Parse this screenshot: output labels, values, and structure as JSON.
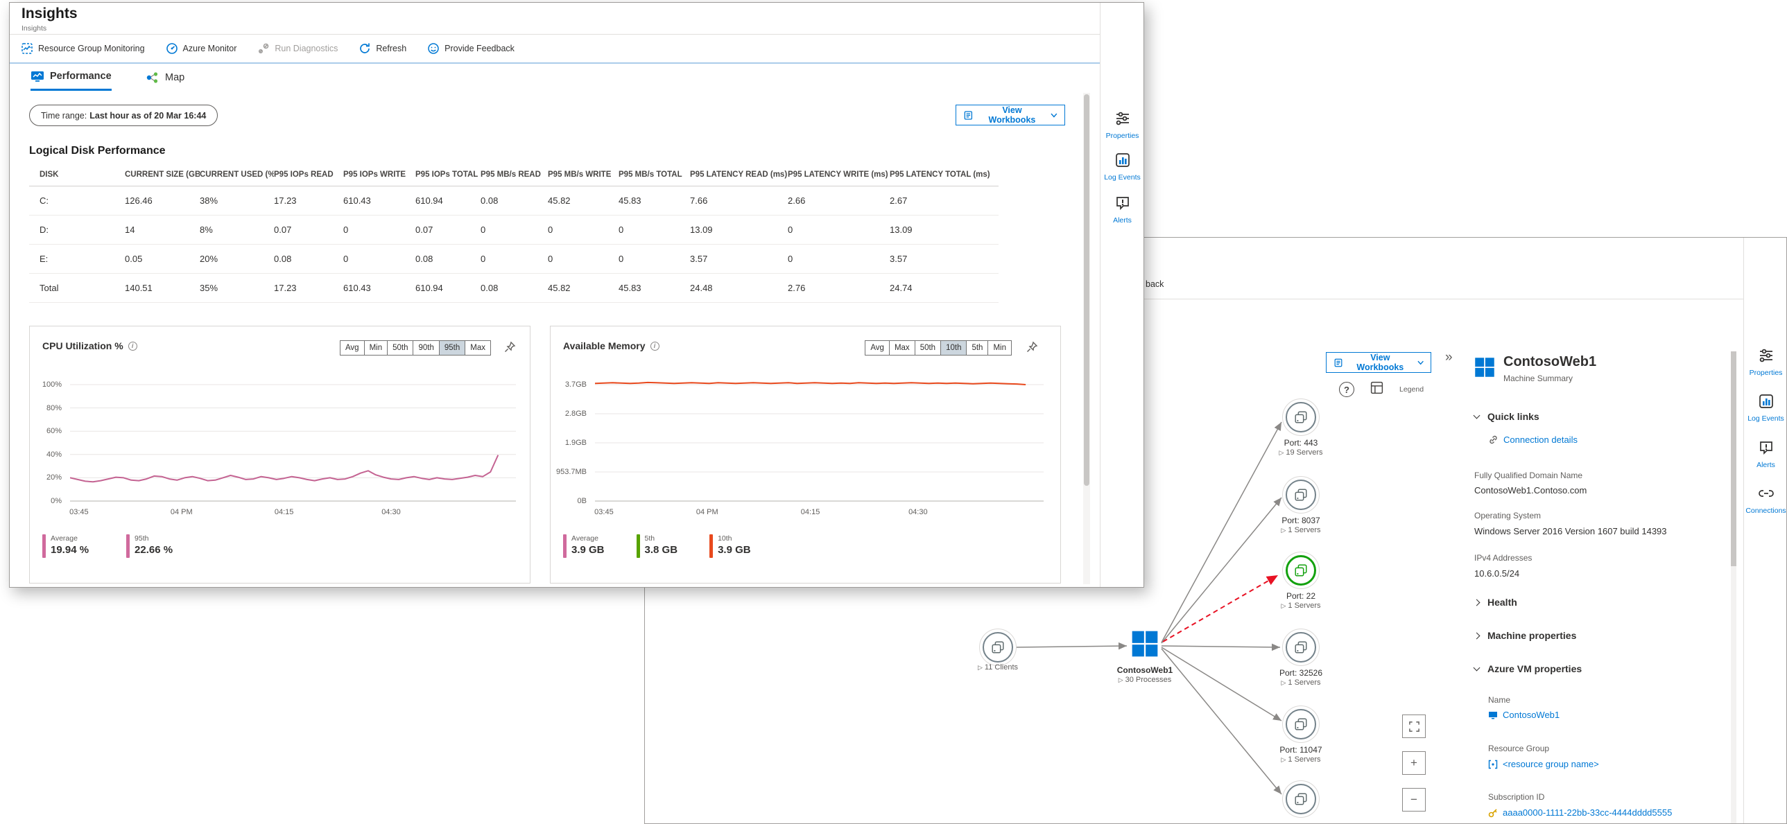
{
  "insights": {
    "title": "Insights",
    "subtitle": "Insights",
    "toolbar": [
      {
        "label": "Resource Group Monitoring"
      },
      {
        "label": "Azure Monitor"
      },
      {
        "label": "Run Diagnostics"
      },
      {
        "label": "Refresh"
      },
      {
        "label": "Provide Feedback"
      }
    ],
    "tabs": {
      "performance": "Performance",
      "map": "Map"
    },
    "time_range": {
      "label": "Time range:",
      "value": "Last hour as of 20 Mar 16:44"
    },
    "view_workbooks": "View Workbooks",
    "disk_table": {
      "title": "Logical Disk Performance",
      "columns": [
        "DISK",
        "CURRENT SIZE (GB)",
        "CURRENT USED (%)",
        "P95 IOPs READ",
        "P95 IOPs WRITE",
        "P95 IOPs TOTAL",
        "P95 MB/s READ",
        "P95 MB/s WRITE",
        "P95 MB/s TOTAL",
        "P95 LATENCY READ (ms)",
        "P95 LATENCY WRITE (ms)",
        "P95 LATENCY TOTAL (ms)"
      ],
      "rows": [
        [
          "C:",
          "126.46",
          "38%",
          "17.23",
          "610.43",
          "610.94",
          "0.08",
          "45.82",
          "45.83",
          "7.66",
          "2.66",
          "2.67"
        ],
        [
          "D:",
          "14",
          "8%",
          "0.07",
          "0",
          "0.07",
          "0",
          "0",
          "0",
          "13.09",
          "0",
          "13.09"
        ],
        [
          "E:",
          "0.05",
          "20%",
          "0.08",
          "0",
          "0.08",
          "0",
          "0",
          "0",
          "3.57",
          "0",
          "3.57"
        ],
        [
          "Total",
          "140.51",
          "35%",
          "17.23",
          "610.43",
          "610.94",
          "0.08",
          "45.82",
          "45.83",
          "24.48",
          "2.76",
          "24.74"
        ]
      ]
    },
    "rail": {
      "properties": "Properties",
      "log_events": "Log Events",
      "alerts": "Alerts"
    }
  },
  "chart_data": [
    {
      "type": "line",
      "title": "CPU Utilization %",
      "percentile_buttons": [
        "Avg",
        "Min",
        "50th",
        "90th",
        "95th",
        "Max"
      ],
      "selected_percentile": "95th",
      "y_ticks": [
        "100%",
        "80%",
        "60%",
        "40%",
        "20%",
        "0%"
      ],
      "y_top_value": 100,
      "ylim": [
        0,
        100
      ],
      "x_ticks": [
        "03:45",
        "04 PM",
        "04:15",
        "04:30"
      ],
      "x_tick_pos": [
        0.02,
        0.25,
        0.48,
        0.72
      ],
      "series": [
        {
          "name": "95th",
          "color": "#c46392",
          "values": [
            20,
            18.5,
            17,
            16.5,
            17.5,
            19,
            20.5,
            20,
            18,
            17.5,
            19,
            21.5,
            21,
            19,
            18,
            20,
            21,
            19.5,
            17.5,
            18,
            20,
            22,
            20.5,
            18.5,
            19,
            21,
            20,
            18.5,
            19.5,
            21,
            20,
            18.5,
            17.5,
            19,
            20,
            18.5,
            19,
            21,
            24,
            26,
            22.5,
            20.5,
            19,
            18.5,
            20,
            21,
            19.5,
            18.5,
            20,
            19,
            18.5,
            19.5,
            20.5,
            22,
            21,
            25,
            39.5
          ]
        }
      ],
      "legend": [
        {
          "label": "Average",
          "value": "19.94 %",
          "color": "#d06a9d"
        },
        {
          "label": "95th",
          "value": "22.66 %",
          "color": "#d06a9d"
        }
      ]
    },
    {
      "type": "line",
      "title": "Available Memory",
      "percentile_buttons": [
        "Avg",
        "Max",
        "50th",
        "10th",
        "5th",
        "Min"
      ],
      "selected_percentile": "10th",
      "y_ticks": [
        "3.7GB",
        "2.8GB",
        "1.9GB",
        "953.7MB",
        "0B"
      ],
      "y_top_value": 3.8,
      "ylim": [
        0,
        3.8
      ],
      "x_ticks": [
        "03:45",
        "04 PM",
        "04:15",
        "04:30"
      ],
      "x_tick_pos": [
        0.02,
        0.25,
        0.48,
        0.72
      ],
      "series": [
        {
          "name": "10th",
          "color": "#e8491d",
          "values": [
            3.84,
            3.85,
            3.86,
            3.85,
            3.84,
            3.85,
            3.87,
            3.86,
            3.85,
            3.84,
            3.85,
            3.86,
            3.85,
            3.84,
            3.86,
            3.85,
            3.84,
            3.85,
            3.86,
            3.85,
            3.84,
            3.85,
            3.86,
            3.84,
            3.85,
            3.86,
            3.85,
            3.84,
            3.85,
            3.84,
            3.86,
            3.85,
            3.84,
            3.85,
            3.84,
            3.85,
            3.86,
            3.85,
            3.84,
            3.85,
            3.84,
            3.85,
            3.84,
            3.83,
            3.84,
            3.85,
            3.84,
            3.83,
            3.82,
            3.8
          ]
        }
      ],
      "legend": [
        {
          "label": "Average",
          "value": "3.9 GB",
          "color": "#d06a9d"
        },
        {
          "label": "5th",
          "value": "3.8 GB",
          "color": "#57a300"
        },
        {
          "label": "10th",
          "value": "3.9 GB",
          "color": "#e8491d"
        }
      ]
    }
  ],
  "map": {
    "toolbar_text": "back",
    "view_workbooks": "View Workbooks",
    "help_glyph": "?",
    "legend_label": "Legend",
    "expand_glyph": "▷",
    "collapse_glyph": "»",
    "controls": {
      "zoom_in": "+",
      "zoom_out": "−"
    },
    "client": {
      "sub": "11 Clients"
    },
    "machine": {
      "title": "ContosoWeb1",
      "sub": "30 Processes"
    },
    "ports": [
      {
        "title": "Port: 443",
        "sub": "19 Servers"
      },
      {
        "title": "Port: 8037",
        "sub": "1 Servers"
      },
      {
        "title": "Port: 22",
        "sub": "1 Servers"
      },
      {
        "title": "Port: 32526",
        "sub": "1 Servers"
      },
      {
        "title": "Port: 11047",
        "sub": "1 Servers"
      }
    ],
    "panel": {
      "title": "ContosoWeb1",
      "subtitle": "Machine Summary",
      "quick_links": "Quick links",
      "connection_details": "Connection details",
      "fqdn_label": "Fully Qualified Domain Name",
      "fqdn_value": "ContosoWeb1.Contoso.com",
      "os_label": "Operating System",
      "os_value": "Windows Server 2016 Version 1607 build 14393",
      "ip_label": "IPv4 Addresses",
      "ip_value": "10.6.0.5/24",
      "health": "Health",
      "machine_properties": "Machine properties",
      "azure_vm_properties": "Azure VM properties",
      "name_label": "Name",
      "name_value": "ContosoWeb1",
      "rg_label": "Resource Group",
      "rg_value": "<resource group name>",
      "sub_label": "Subscription ID",
      "sub_value": "aaaa0000-1111-22bb-33cc-4444dddd5555"
    },
    "rail": {
      "properties": "Properties",
      "log_events": "Log Events",
      "alerts": "Alerts",
      "connections": "Connections"
    }
  },
  "colors": {
    "accent": "#0078d4",
    "cpu_line": "#c46392",
    "memory_line": "#e8491d",
    "highlight_green": "#13a10e",
    "alert_red": "#e81123"
  }
}
